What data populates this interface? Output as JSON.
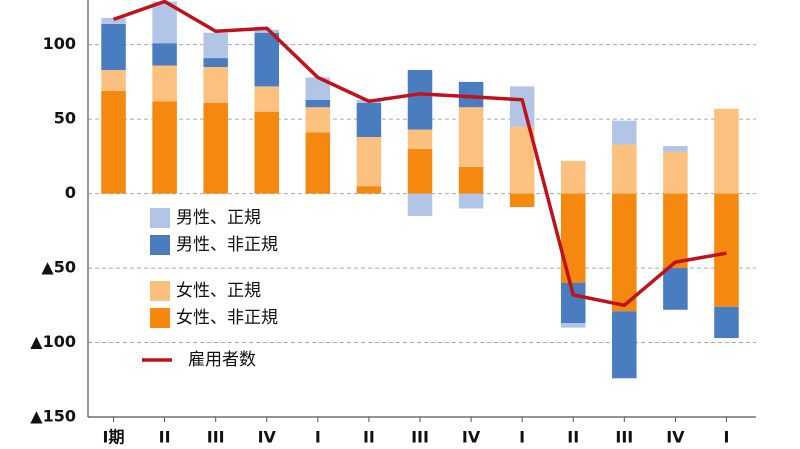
{
  "chart_data": {
    "type": "bar",
    "categories": [
      "I期",
      "II",
      "III",
      "IV",
      "I",
      "II",
      "III",
      "IV",
      "I",
      "II",
      "III",
      "IV",
      "I"
    ],
    "series": [
      {
        "name": "女性、非正規",
        "color": "#f5880f",
        "values": [
          69,
          62,
          61,
          55,
          41,
          5,
          30,
          18,
          -9,
          -60,
          -79,
          -50,
          -76
        ]
      },
      {
        "name": "女性、正規",
        "color": "#fcc17f",
        "values": [
          14,
          24,
          24,
          17,
          17,
          33,
          13,
          40,
          45,
          22,
          33,
          28,
          57
        ]
      },
      {
        "name": "男性、非正規",
        "color": "#4a7cc0",
        "values": [
          31,
          15,
          6,
          36,
          5,
          23,
          40,
          17,
          0,
          -27,
          -45,
          -28,
          -21
        ]
      },
      {
        "name": "男性、正規",
        "color": "#b3c5e6",
        "values": [
          4,
          28,
          17,
          2,
          15,
          2,
          -15,
          -10,
          27,
          -3,
          16,
          4,
          0
        ]
      },
      {
        "name": "雇用者数",
        "color": "#c0121c",
        "type": "line",
        "values": [
          117,
          129,
          109,
          111,
          78,
          62,
          67,
          65,
          63,
          -68,
          -75,
          -46,
          -40
        ]
      }
    ],
    "ylim": [
      -150,
      130
    ],
    "yticks": [
      {
        "value": -150,
        "label": "▲150"
      },
      {
        "value": -100,
        "label": "▲100"
      },
      {
        "value": -50,
        "label": "▲50"
      },
      0,
      50,
      100
    ],
    "grid": true
  }
}
